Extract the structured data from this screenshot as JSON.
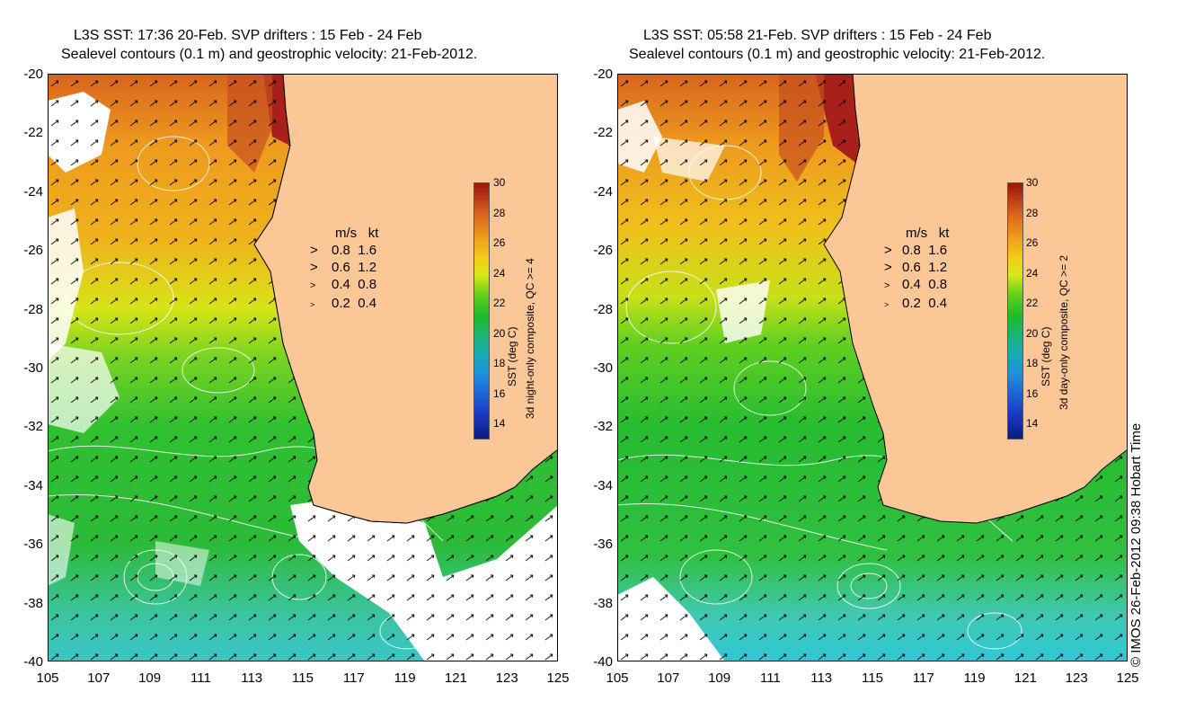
{
  "panels": [
    {
      "title_line1": "L3S SST: 17:36 20-Feb. SVP drifters : 15 Feb - 24 Feb",
      "title_line2": "Sealevel contours (0.1 m) and geostrophic velocity: 21-Feb-2012.",
      "colorbar_label": "SST (deg C)",
      "colorbar_sublabel": "3d night-only composite, QC >= 4"
    },
    {
      "title_line1": "L3S SST: 05:58 21-Feb. SVP drifters : 15 Feb - 24 Feb",
      "title_line2": "Sealevel contours (0.1 m) and geostrophic velocity: 21-Feb-2012.",
      "colorbar_label": "SST (deg C)",
      "colorbar_sublabel": "3d day-only composite, QC >= 2"
    }
  ],
  "axes": {
    "lat_ticks": [
      "-20",
      "-22",
      "-24",
      "-26",
      "-28",
      "-30",
      "-32",
      "-34",
      "-36",
      "-38",
      "-40"
    ],
    "lon_ticks": [
      "105",
      "107",
      "109",
      "111",
      "113",
      "115",
      "117",
      "119",
      "121",
      "123",
      "125"
    ]
  },
  "colorbar": {
    "ticks": [
      "30",
      "28",
      "26",
      "24",
      "22",
      "20",
      "18",
      "16",
      "14"
    ]
  },
  "legend": {
    "header_ms": "m/s",
    "header_kt": "kt",
    "rows": [
      {
        "ms": "0.8",
        "kt": "1.6"
      },
      {
        "ms": "0.6",
        "kt": "1.2"
      },
      {
        "ms": "0.4",
        "kt": "0.8"
      },
      {
        "ms": "0.2",
        "kt": "0.4"
      }
    ]
  },
  "credit": "© IMOS 26-Feb-2012 09:38 Hobart Time",
  "colors": {
    "land": "#fbc797",
    "warm": "#9b1410",
    "orange": "#e08a1c",
    "yellow": "#e8d818",
    "green": "#22b830",
    "cyan": "#25c0b8",
    "cloud": "#ffffff",
    "contour": "#ffffff",
    "arrow": "#000000"
  }
}
